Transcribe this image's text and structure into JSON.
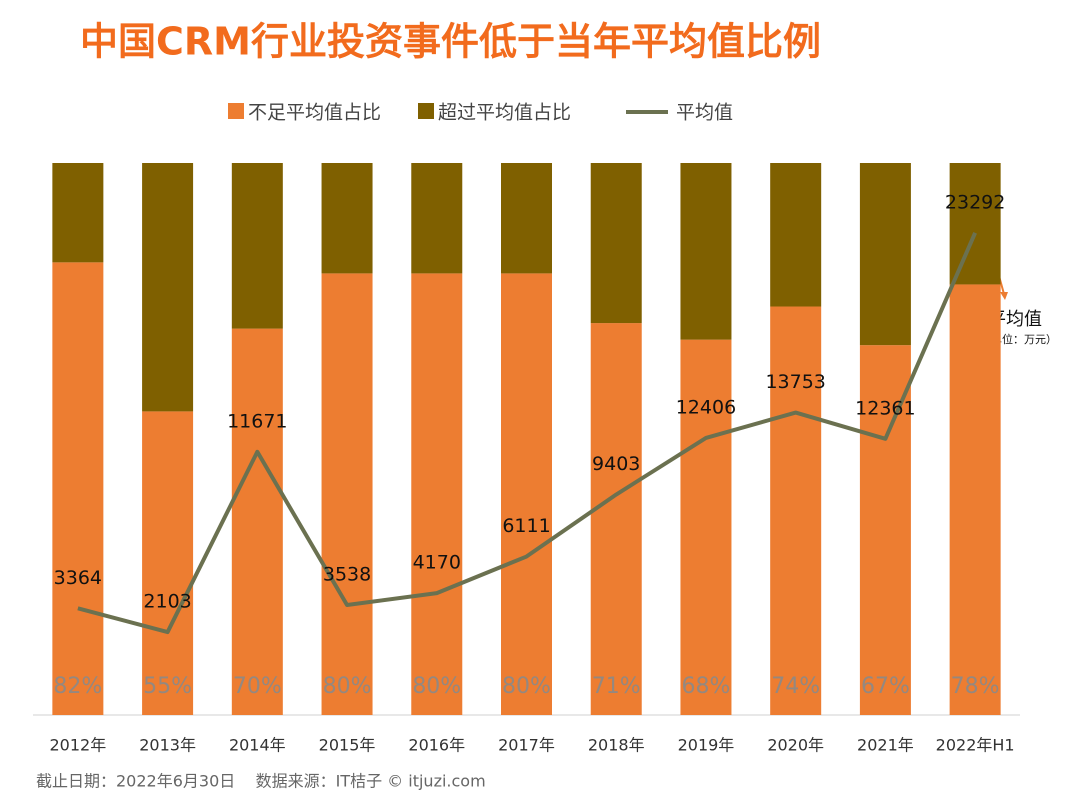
{
  "chart_data": {
    "type": "stacked_bar_line",
    "title": "中国CRM行业投资事件低于当年平均值比例",
    "categories": [
      "2012年",
      "2013年",
      "2014年",
      "2015年",
      "2016年",
      "2017年",
      "2018年",
      "2019年",
      "2020年",
      "2021年",
      "2022年H1"
    ],
    "series": [
      {
        "name": "不足平均值占比",
        "color": "#ED7D31",
        "values": [
          82,
          55,
          70,
          80,
          80,
          80,
          71,
          68,
          74,
          67,
          78
        ],
        "value_labels": [
          "82%",
          "55%",
          "70%",
          "80%",
          "80%",
          "80%",
          "71%",
          "68%",
          "74%",
          "67%",
          "78%"
        ]
      },
      {
        "name": "超过平均值占比",
        "color": "#7F6000",
        "values": [
          18,
          45,
          30,
          20,
          20,
          20,
          29,
          32,
          26,
          33,
          22
        ]
      },
      {
        "name": "平均值",
        "type": "line",
        "color": "#6B7150",
        "axis": "y2",
        "values": [
          3364,
          2103,
          11671,
          3538,
          4170,
          6111,
          9403,
          12406,
          13753,
          12361,
          23292
        ]
      }
    ],
    "ylim": [
      0,
      100
    ],
    "y2lim": [
      -2300,
      27000
    ],
    "annotations": [
      "平均值",
      "（单位：万元）"
    ],
    "footnote": "截止日期：2022年6月30日    数据来源：IT桔子 © itjuzi.com"
  }
}
